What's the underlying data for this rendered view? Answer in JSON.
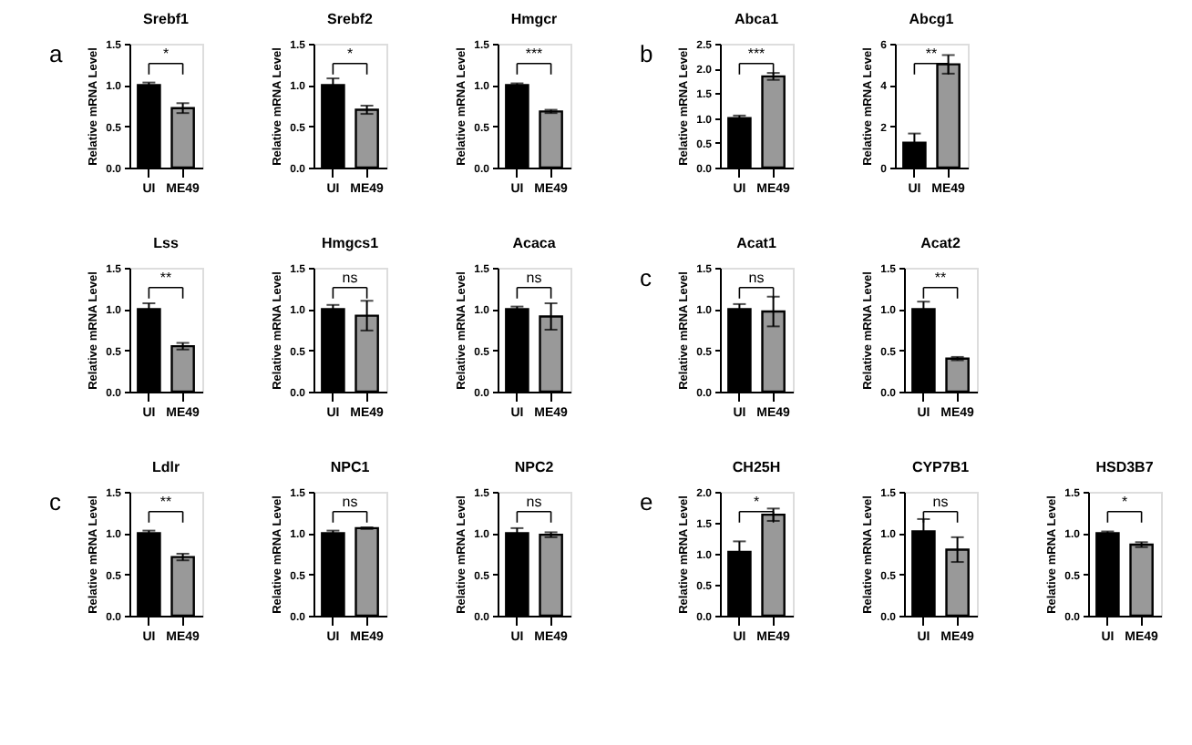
{
  "chart_data": [
    {
      "type": "bar",
      "title": "Srebf1",
      "ylabel": "Relative mRNA Level",
      "categories": [
        "UI",
        "ME49"
      ],
      "values": [
        1.0,
        0.72
      ],
      "errors": [
        0.03,
        0.06
      ],
      "colors": [
        "#000000",
        "#999999"
      ],
      "ylim": [
        0,
        1.5
      ],
      "yticks": [
        {
          "value": 0,
          "label": "0.0"
        },
        {
          "value": 0.5,
          "label": "0.5"
        },
        {
          "value": 1,
          "label": "1.0"
        },
        {
          "value": 1.5,
          "label": "1.5"
        }
      ],
      "annotations": [
        "a",
        "*"
      ]
    },
    {
      "type": "bar",
      "title": "Srebf2",
      "ylabel": "Relative mRNA Level",
      "categories": [
        "UI",
        "ME49"
      ],
      "values": [
        1.0,
        0.7
      ],
      "errors": [
        0.08,
        0.05
      ],
      "colors": [
        "#000000",
        "#999999"
      ],
      "ylim": [
        0,
        1.5
      ],
      "yticks": [
        {
          "value": 0,
          "label": "0.0"
        },
        {
          "value": 0.5,
          "label": "0.5"
        },
        {
          "value": 1,
          "label": "1.0"
        },
        {
          "value": 1.5,
          "label": "1.5"
        }
      ],
      "annotations": [
        "*"
      ]
    },
    {
      "type": "bar",
      "title": "Hmgcr",
      "ylabel": "Relative mRNA Level",
      "categories": [
        "UI",
        "ME49"
      ],
      "values": [
        1.0,
        0.68
      ],
      "errors": [
        0.02,
        0.02
      ],
      "colors": [
        "#000000",
        "#999999"
      ],
      "ylim": [
        0,
        1.5
      ],
      "yticks": [
        {
          "value": 0,
          "label": "0.0"
        },
        {
          "value": 0.5,
          "label": "0.5"
        },
        {
          "value": 1,
          "label": "1.0"
        },
        {
          "value": 1.5,
          "label": "1.5"
        }
      ],
      "annotations": [
        "***"
      ]
    },
    {
      "type": "bar",
      "title": "Abca1",
      "ylabel": "Relative mRNA Level",
      "categories": [
        "UI",
        "ME49"
      ],
      "values": [
        1.0,
        1.84
      ],
      "errors": [
        0.05,
        0.07
      ],
      "colors": [
        "#000000",
        "#999999"
      ],
      "ylim": [
        0,
        2.5
      ],
      "yticks": [
        {
          "value": 0,
          "label": "0.0"
        },
        {
          "value": 0.5,
          "label": "0.5"
        },
        {
          "value": 1,
          "label": "1.0"
        },
        {
          "value": 1.5,
          "label": "1.5"
        },
        {
          "value": 2,
          "label": "2.0"
        },
        {
          "value": 2.5,
          "label": "2.5"
        }
      ],
      "annotations": [
        "b",
        "***"
      ]
    },
    {
      "type": "bar",
      "title": "Abcg1",
      "ylabel": "Relative mRNA Level",
      "categories": [
        "UI",
        "ME49"
      ],
      "values": [
        1.2,
        5.0
      ],
      "errors": [
        0.45,
        0.45
      ],
      "colors": [
        "#000000",
        "#999999"
      ],
      "ylim": [
        0,
        6
      ],
      "yticks": [
        0,
        2,
        4,
        6
      ],
      "annotations": [
        "**"
      ]
    },
    {
      "type": "bar",
      "title": "Lss",
      "ylabel": "Relative mRNA Level",
      "categories": [
        "UI",
        "ME49"
      ],
      "values": [
        1.0,
        0.55
      ],
      "errors": [
        0.07,
        0.04
      ],
      "colors": [
        "#000000",
        "#999999"
      ],
      "ylim": [
        0,
        1.5
      ],
      "yticks": [
        {
          "value": 0,
          "label": "0.0"
        },
        {
          "value": 0.5,
          "label": "0.5"
        },
        {
          "value": 1,
          "label": "1.0"
        },
        {
          "value": 1.5,
          "label": "1.5"
        }
      ],
      "annotations": [
        "**"
      ]
    },
    {
      "type": "bar",
      "title": "Hmgcs1",
      "ylabel": "Relative mRNA Level",
      "categories": [
        "UI",
        "ME49"
      ],
      "values": [
        1.0,
        0.92
      ],
      "errors": [
        0.05,
        0.18
      ],
      "colors": [
        "#000000",
        "#999999"
      ],
      "ylim": [
        0,
        1.5
      ],
      "yticks": [
        {
          "value": 0,
          "label": "0.0"
        },
        {
          "value": 0.5,
          "label": "0.5"
        },
        {
          "value": 1,
          "label": "1.0"
        },
        {
          "value": 1.5,
          "label": "1.5"
        }
      ],
      "annotations": [
        "ns"
      ]
    },
    {
      "type": "bar",
      "title": "Acaca",
      "ylabel": "Relative mRNA Level",
      "categories": [
        "UI",
        "ME49"
      ],
      "values": [
        1.0,
        0.91
      ],
      "errors": [
        0.03,
        0.16
      ],
      "colors": [
        "#000000",
        "#999999"
      ],
      "ylim": [
        0,
        1.5
      ],
      "yticks": [
        {
          "value": 0,
          "label": "0.0"
        },
        {
          "value": 0.5,
          "label": "0.5"
        },
        {
          "value": 1,
          "label": "1.0"
        },
        {
          "value": 1.5,
          "label": "1.5"
        }
      ],
      "annotations": [
        "ns"
      ]
    },
    {
      "type": "bar",
      "title": "Acat1",
      "ylabel": "Relative mRNA Level",
      "categories": [
        "UI",
        "ME49"
      ],
      "values": [
        1.0,
        0.97
      ],
      "errors": [
        0.06,
        0.18
      ],
      "colors": [
        "#000000",
        "#999999"
      ],
      "ylim": [
        0,
        1.5
      ],
      "yticks": [
        {
          "value": 0,
          "label": "0.0"
        },
        {
          "value": 0.5,
          "label": "0.5"
        },
        {
          "value": 1,
          "label": "1.0"
        },
        {
          "value": 1.5,
          "label": "1.5"
        }
      ],
      "annotations": [
        "c",
        "ns"
      ]
    },
    {
      "type": "bar",
      "title": "Acat2",
      "ylabel": "Relative mRNA Level",
      "categories": [
        "UI",
        "ME49"
      ],
      "values": [
        1.0,
        0.4
      ],
      "errors": [
        0.09,
        0.02
      ],
      "colors": [
        "#000000",
        "#999999"
      ],
      "ylim": [
        0,
        1.5
      ],
      "yticks": [
        {
          "value": 0,
          "label": "0.0"
        },
        {
          "value": 0.5,
          "label": "0.5"
        },
        {
          "value": 1,
          "label": "1.0"
        },
        {
          "value": 1.5,
          "label": "1.5"
        }
      ],
      "annotations": [
        "**"
      ]
    },
    {
      "type": "bar",
      "title": "Ldlr",
      "ylabel": "Relative mRNA Level",
      "categories": [
        "UI",
        "ME49"
      ],
      "values": [
        1.0,
        0.71
      ],
      "errors": [
        0.03,
        0.04
      ],
      "colors": [
        "#000000",
        "#999999"
      ],
      "ylim": [
        0,
        1.5
      ],
      "yticks": [
        {
          "value": 0,
          "label": "0.0"
        },
        {
          "value": 0.5,
          "label": "0.5"
        },
        {
          "value": 1,
          "label": "1.0"
        },
        {
          "value": 1.5,
          "label": "1.5"
        }
      ],
      "annotations": [
        "c",
        "**"
      ]
    },
    {
      "type": "bar",
      "title": "NPC1",
      "ylabel": "Relative mRNA Level",
      "categories": [
        "UI",
        "ME49"
      ],
      "values": [
        1.0,
        1.06
      ],
      "errors": [
        0.03,
        0.01
      ],
      "colors": [
        "#000000",
        "#999999"
      ],
      "ylim": [
        0,
        1.5
      ],
      "yticks": [
        {
          "value": 0,
          "label": "0.0"
        },
        {
          "value": 0.5,
          "label": "0.5"
        },
        {
          "value": 1,
          "label": "1.0"
        },
        {
          "value": 1.5,
          "label": "1.5"
        }
      ],
      "annotations": [
        "ns"
      ]
    },
    {
      "type": "bar",
      "title": "NPC2",
      "ylabel": "Relative mRNA Level",
      "categories": [
        "UI",
        "ME49"
      ],
      "values": [
        1.0,
        0.98
      ],
      "errors": [
        0.06,
        0.03
      ],
      "colors": [
        "#000000",
        "#999999"
      ],
      "ylim": [
        0,
        1.5
      ],
      "yticks": [
        {
          "value": 0,
          "label": "0.0"
        },
        {
          "value": 0.5,
          "label": "0.5"
        },
        {
          "value": 1,
          "label": "1.0"
        },
        {
          "value": 1.5,
          "label": "1.5"
        }
      ],
      "annotations": [
        "ns"
      ]
    },
    {
      "type": "bar",
      "title": "CH25H",
      "ylabel": "Relative mRNA Level",
      "categories": [
        "UI",
        "ME49"
      ],
      "values": [
        1.03,
        1.63
      ],
      "errors": [
        0.17,
        0.1
      ],
      "colors": [
        "#000000",
        "#999999"
      ],
      "ylim": [
        0,
        2
      ],
      "yticks": [
        {
          "value": 0,
          "label": "0.0"
        },
        {
          "value": 0.5,
          "label": "0.5"
        },
        {
          "value": 1,
          "label": "1.0"
        },
        {
          "value": 1.5,
          "label": "1.5"
        },
        {
          "value": 2,
          "label": "2.0"
        }
      ],
      "annotations": [
        "e",
        "*"
      ]
    },
    {
      "type": "bar",
      "title": "CYP7B1",
      "ylabel": "Relative mRNA Level",
      "categories": [
        "UI",
        "ME49"
      ],
      "values": [
        1.02,
        0.8
      ],
      "errors": [
        0.15,
        0.15
      ],
      "colors": [
        "#000000",
        "#999999"
      ],
      "ylim": [
        0,
        1.5
      ],
      "yticks": [
        {
          "value": 0,
          "label": "0.0"
        },
        {
          "value": 0.5,
          "label": "0.5"
        },
        {
          "value": 1,
          "label": "1.0"
        },
        {
          "value": 1.5,
          "label": "1.5"
        }
      ],
      "annotations": [
        "ns"
      ]
    },
    {
      "type": "bar",
      "title": "HSD3B7",
      "ylabel": "Relative mRNA Level",
      "categories": [
        "UI",
        "ME49"
      ],
      "values": [
        1.0,
        0.86
      ],
      "errors": [
        0.02,
        0.03
      ],
      "colors": [
        "#000000",
        "#999999"
      ],
      "ylim": [
        0,
        1.5
      ],
      "yticks": [
        {
          "value": 0,
          "label": "0.0"
        },
        {
          "value": 0.5,
          "label": "0.5"
        },
        {
          "value": 1,
          "label": "1.0"
        },
        {
          "value": 1.5,
          "label": "1.5"
        }
      ],
      "annotations": [
        "*"
      ]
    }
  ]
}
